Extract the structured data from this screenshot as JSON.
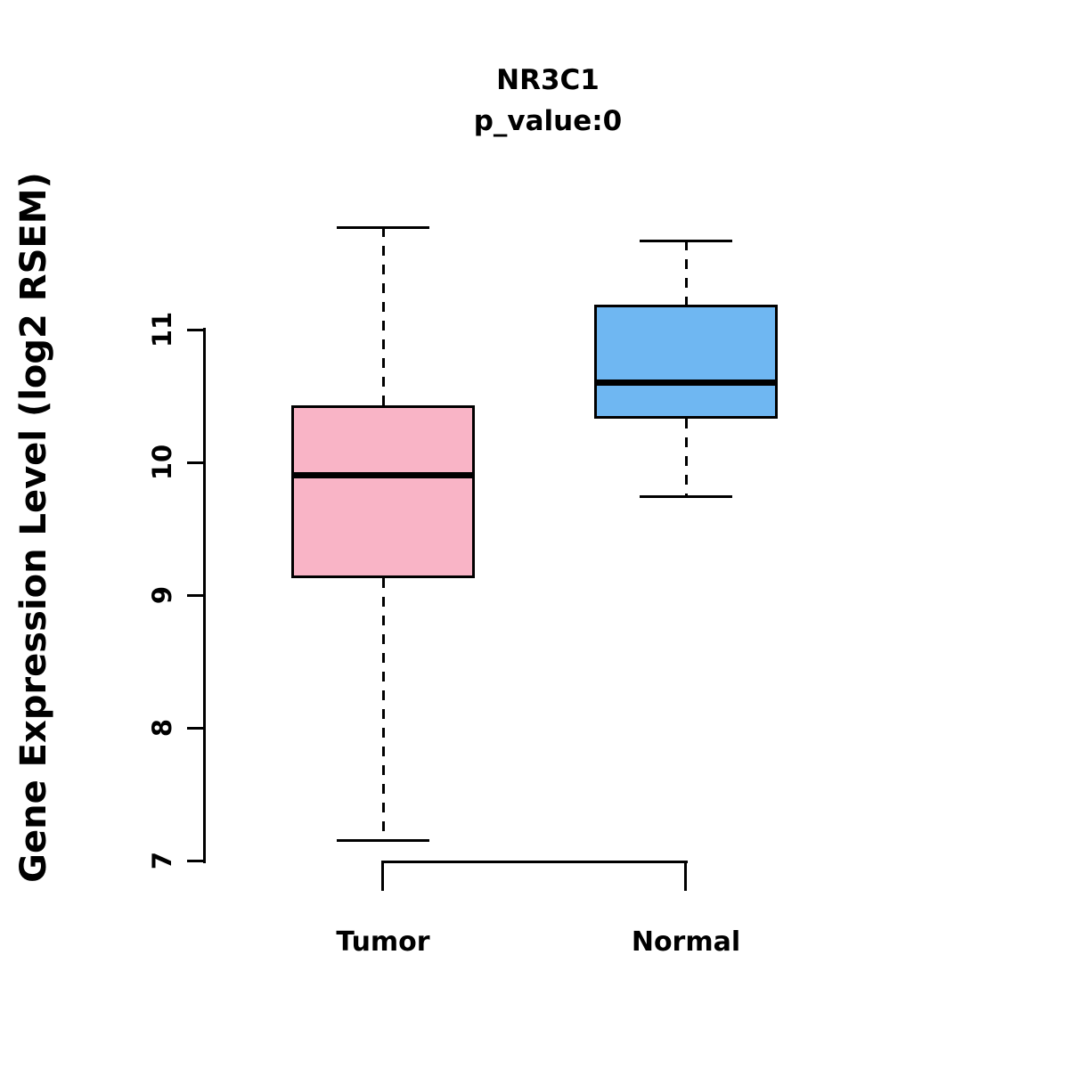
{
  "chart_data": {
    "type": "boxplot",
    "title": "NR3C1",
    "subtitle": "p_value:0",
    "ylabel": "Gene Expression Level (log2 RSEM)",
    "xlabel": "",
    "categories": [
      "Tumor",
      "Normal"
    ],
    "y_ticks": [
      7,
      8,
      9,
      10,
      11
    ],
    "ylim": [
      6.9,
      11.9
    ],
    "grid": false,
    "legend": "none",
    "box_border_color": "#000000",
    "median_color": "#000000",
    "whisker_style": "dashed",
    "series": [
      {
        "name": "Tumor",
        "color": "#F9B4C6",
        "whisker_low": 7.15,
        "q1": 9.13,
        "median": 9.9,
        "q3": 10.43,
        "whisker_high": 11.77
      },
      {
        "name": "Normal",
        "color": "#6FB7F2",
        "whisker_low": 9.74,
        "q1": 10.33,
        "median": 10.6,
        "q3": 11.19,
        "whisker_high": 11.67
      }
    ]
  }
}
